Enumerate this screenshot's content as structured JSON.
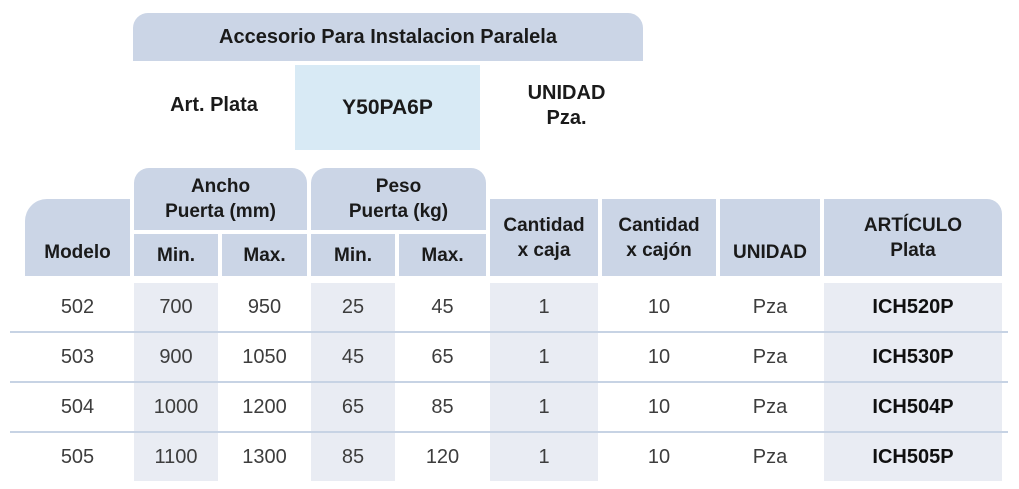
{
  "header": {
    "banner_title": "Accesorio Para Instalacion Paralela",
    "art_label": "Art. Plata",
    "art_code": "Y50PA6P",
    "unit_label": "UNIDAD",
    "unit_value": "Pza."
  },
  "table": {
    "columns": {
      "modelo": "Modelo",
      "ancho_line1": "Ancho",
      "ancho_line2": "Puerta (mm)",
      "peso_line1": "Peso",
      "peso_line2": "Puerta (kg)",
      "min": "Min.",
      "max": "Max.",
      "caja_line1": "Cantidad",
      "caja_line2": "x caja",
      "cajon_line1": "Cantidad",
      "cajon_line2": "x cajón",
      "unidad": "UNIDAD",
      "articulo_line1": "ARTÍCULO",
      "articulo_line2": "Plata"
    },
    "rows": [
      {
        "modelo": "502",
        "ancho_min": "700",
        "ancho_max": "950",
        "peso_min": "25",
        "peso_max": "45",
        "cant_caja": "1",
        "cant_cajon": "10",
        "unidad": "Pza",
        "articulo": "ICH520P"
      },
      {
        "modelo": "503",
        "ancho_min": "900",
        "ancho_max": "1050",
        "peso_min": "45",
        "peso_max": "65",
        "cant_caja": "1",
        "cant_cajon": "10",
        "unidad": "Pza",
        "articulo": "ICH530P"
      },
      {
        "modelo": "504",
        "ancho_min": "1000",
        "ancho_max": "1200",
        "peso_min": "65",
        "peso_max": "85",
        "cant_caja": "1",
        "cant_cajon": "10",
        "unidad": "Pza",
        "articulo": "ICH504P"
      },
      {
        "modelo": "505",
        "ancho_min": "1100",
        "ancho_max": "1300",
        "peso_min": "85",
        "peso_max": "120",
        "cant_caja": "1",
        "cant_cajon": "10",
        "unidad": "Pza",
        "articulo": "ICH505P"
      }
    ]
  },
  "colors": {
    "header_cell_bg": "#cbd5e6",
    "code_box_bg": "#d8eaf5",
    "shaded_column_bg": "#e9ecf3",
    "row_separator": "#c7d3e4",
    "text_dark": "#1a1a1a",
    "text_data": "#3d3d3d"
  }
}
